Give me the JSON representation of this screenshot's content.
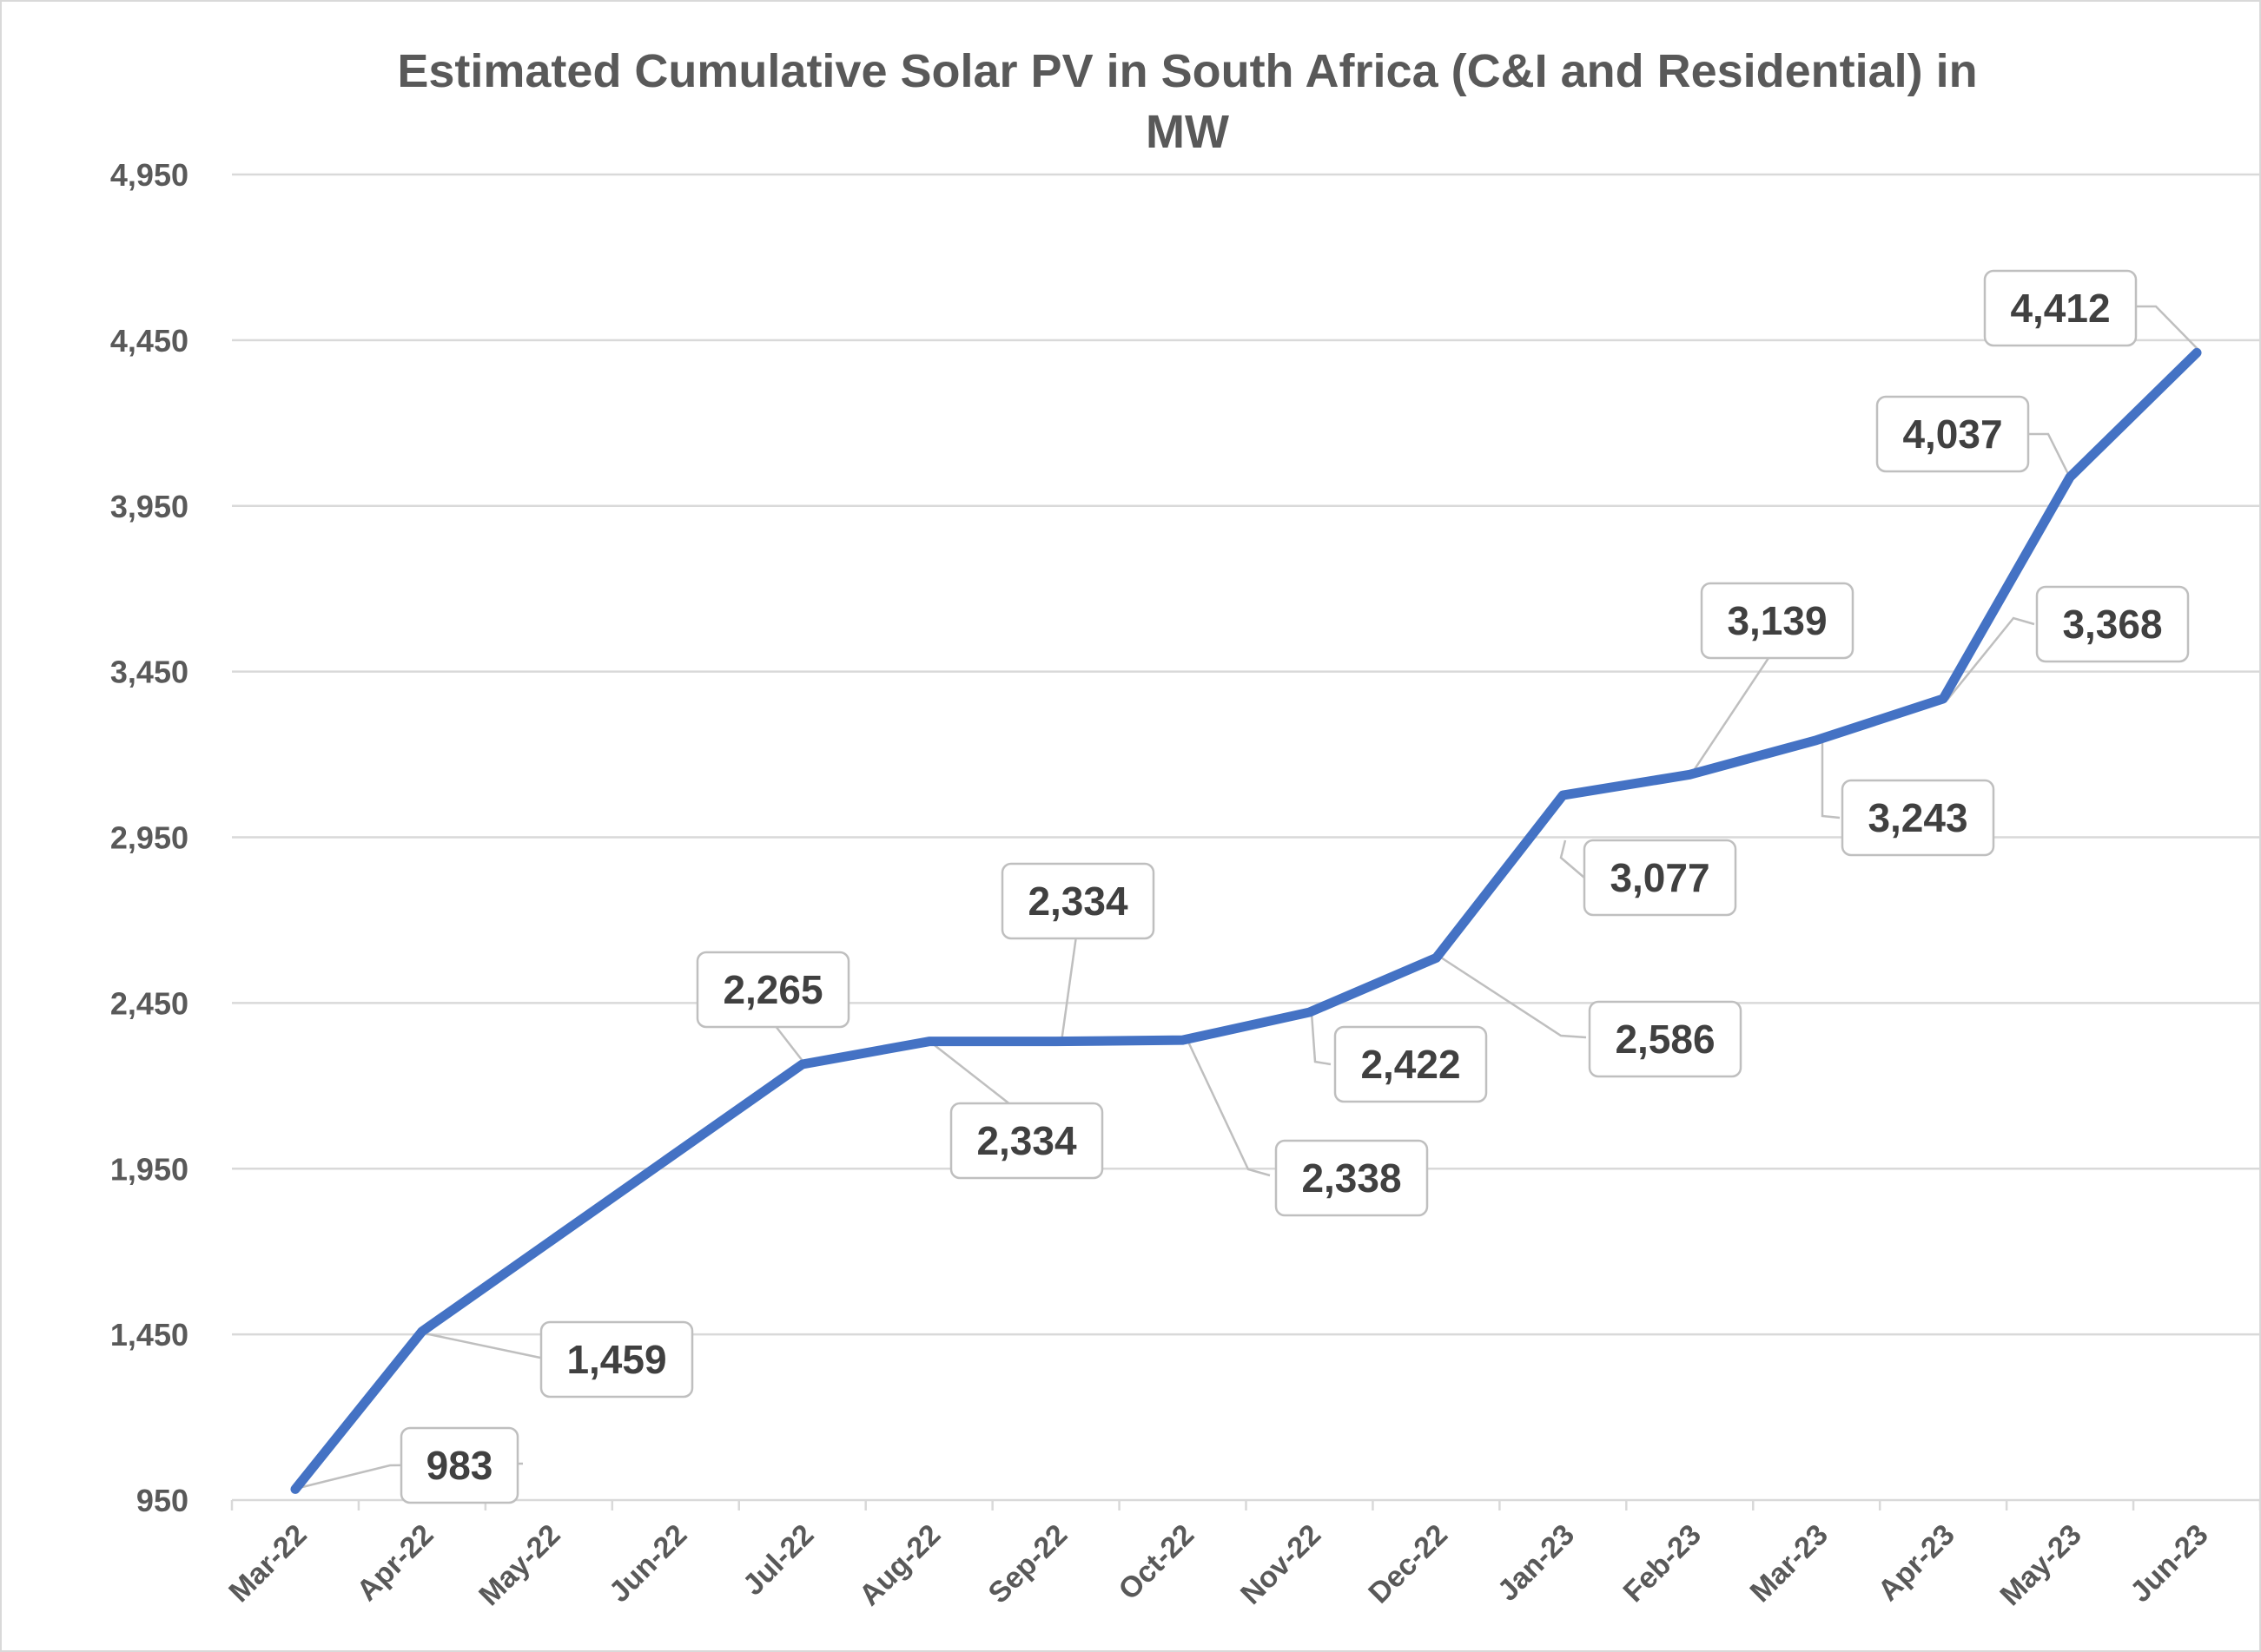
{
  "chart_data": {
    "type": "line",
    "title_lines": [
      "Estimated Cumulative Solar PV in South Africa (C&I and Residential) in",
      "MW"
    ],
    "xlabel": "",
    "ylabel": "",
    "categories": [
      "Mar-22",
      "Apr-22",
      "May-22",
      "Jun-22",
      "Jul-22",
      "Aug-22",
      "Sep-22",
      "Oct-22",
      "Nov-22",
      "Dec-22",
      "Jan-23",
      "Feb-23",
      "Mar-23",
      "Apr-23",
      "May-23",
      "Jun-23"
    ],
    "series": [
      {
        "values": [
          983,
          1459,
          null,
          null,
          2265,
          2334,
          2334,
          2338,
          2422,
          2586,
          3077,
          3139,
          3243,
          3368,
          4037,
          4412
        ],
        "color": "#4472c4"
      }
    ],
    "data_labels": [
      "983",
      "1,459",
      null,
      null,
      "2,265",
      "2,334",
      "2,334",
      "2,338",
      "2,422",
      "2,586",
      "3,077",
      "3,139",
      "3,243",
      "3,368",
      "4,037",
      "4,412"
    ],
    "yticks": [
      "950",
      "1,450",
      "1,950",
      "2,450",
      "2,950",
      "3,450",
      "3,950",
      "4,450",
      "4,950"
    ],
    "ytick_values": [
      950,
      1450,
      1950,
      2450,
      2950,
      3450,
      3950,
      4450,
      4950
    ],
    "ylim": [
      950,
      4950
    ],
    "grid": true,
    "legend": "none",
    "colors": {
      "line": "#4472c4",
      "grid": "#d9d9d9",
      "text": "#595959",
      "label_border": "#bfbfbf"
    }
  }
}
